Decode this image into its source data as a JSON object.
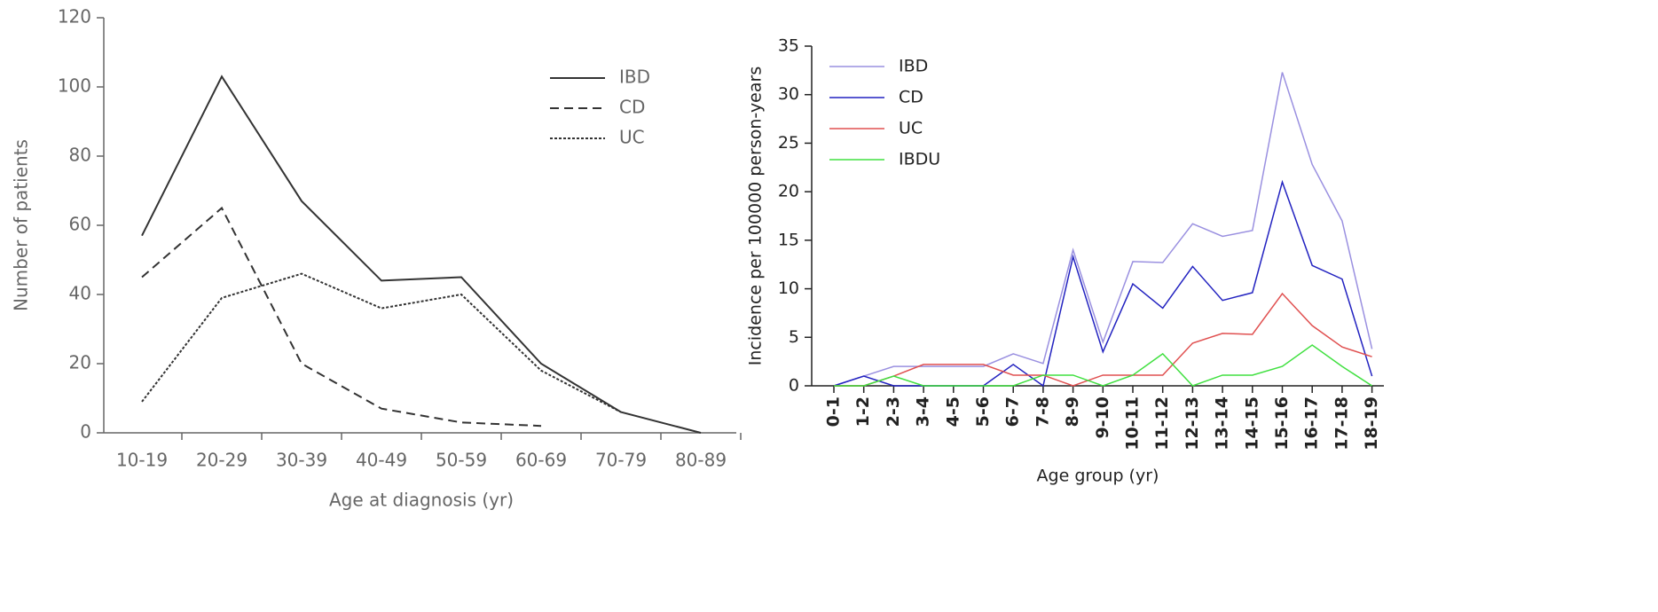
{
  "chart_data": [
    {
      "type": "line",
      "xlabel": "Age at diagnosis (yr)",
      "ylabel": "Number of patients",
      "categories": [
        "10-19",
        "20-29",
        "30-39",
        "40-49",
        "50-59",
        "60-69",
        "70-79",
        "80-89"
      ],
      "series": [
        {
          "name": "IBD",
          "color": "#333333",
          "dash": "solid",
          "values": [
            57,
            103,
            67,
            44,
            45,
            20,
            6,
            0
          ]
        },
        {
          "name": "CD",
          "color": "#333333",
          "dash": "dashed",
          "values": [
            45,
            65,
            20,
            7,
            3,
            2,
            null,
            null
          ]
        },
        {
          "name": "UC",
          "color": "#333333",
          "dash": "dotted",
          "values": [
            9,
            39,
            46,
            36,
            40,
            18,
            6,
            null
          ]
        }
      ],
      "ylim": [
        0,
        120
      ],
      "yticks": [
        0,
        20,
        40,
        60,
        80,
        100,
        120
      ],
      "legend": "upper right"
    },
    {
      "type": "line",
      "xlabel": "Age group (yr)",
      "ylabel": "Incidence per 100000 person-years",
      "categories": [
        "0-1",
        "1-2",
        "2-3",
        "3-4",
        "4-5",
        "5-6",
        "6-7",
        "7-8",
        "8-9",
        "9-10",
        "10-11",
        "11-12",
        "12-13",
        "13-14",
        "14-15",
        "15-16",
        "16-17",
        "17-18",
        "18-19"
      ],
      "series": [
        {
          "name": "IBD",
          "color": "#9a90e0",
          "dash": "solid",
          "values": [
            0,
            1,
            2,
            2,
            2,
            2,
            3.3,
            2.3,
            14,
            4.5,
            12.8,
            12.7,
            16.7,
            15.4,
            16,
            32.3,
            22.8,
            17,
            3.8
          ]
        },
        {
          "name": "CD",
          "color": "#2222c0",
          "dash": "solid",
          "values": [
            0,
            1,
            0,
            0,
            0,
            0,
            2.2,
            0,
            13.3,
            3.5,
            10.5,
            8,
            12.3,
            8.8,
            9.6,
            21,
            12.4,
            11,
            1
          ]
        },
        {
          "name": "UC",
          "color": "#e05050",
          "dash": "solid",
          "values": [
            0,
            0,
            1,
            2.2,
            2.2,
            2.2,
            1.1,
            1.1,
            0,
            1.1,
            1.1,
            1.1,
            4.4,
            5.4,
            5.3,
            9.5,
            6.2,
            4,
            3
          ]
        },
        {
          "name": "IBDU",
          "color": "#40e040",
          "dash": "solid",
          "values": [
            0,
            0,
            1,
            0,
            0,
            0,
            0,
            1.1,
            1.1,
            0,
            1.1,
            3.3,
            0,
            1.1,
            1.1,
            2,
            4.2,
            2,
            0
          ]
        }
      ],
      "ylim": [
        0,
        35
      ],
      "yticks": [
        0,
        5,
        10,
        15,
        20,
        25,
        30,
        35
      ],
      "legend": "upper left"
    }
  ]
}
